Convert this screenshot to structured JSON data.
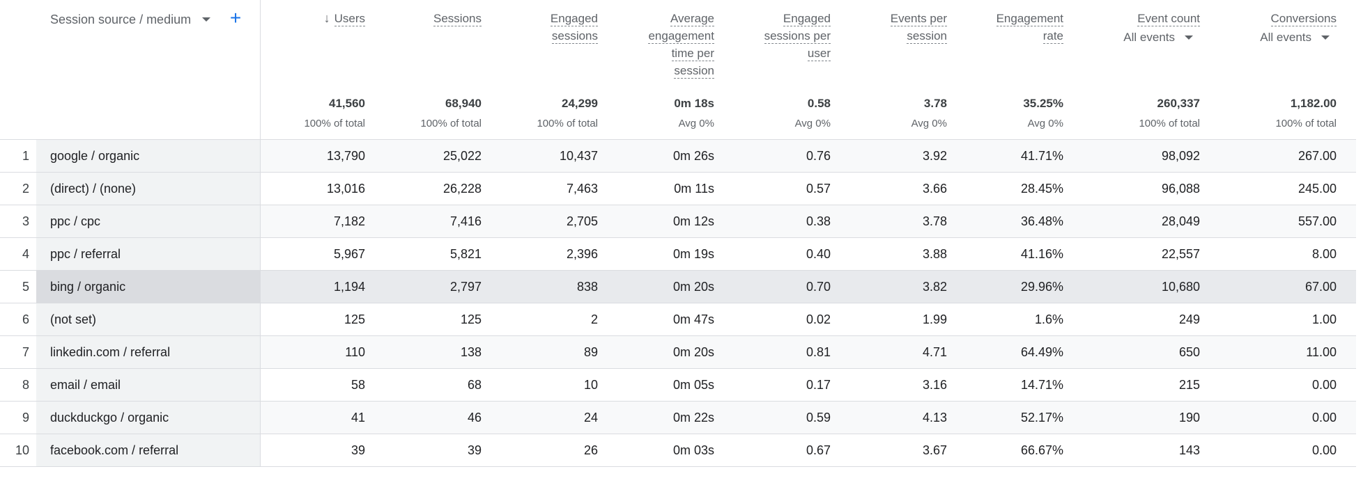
{
  "dimension": {
    "label": "Session source / medium",
    "add_symbol": "+"
  },
  "columns": [
    {
      "key": "users",
      "name_lines": [
        "Users"
      ],
      "sorted": true,
      "total": "41,560",
      "total_sub": "100% of total"
    },
    {
      "key": "sessions",
      "name_lines": [
        "Sessions"
      ],
      "total": "68,940",
      "total_sub": "100% of total"
    },
    {
      "key": "engaged_sessions",
      "name_lines": [
        "Engaged",
        "sessions"
      ],
      "total": "24,299",
      "total_sub": "100% of total"
    },
    {
      "key": "avg_engagement_time",
      "name_lines": [
        "Average",
        "engagement",
        "time per",
        "session"
      ],
      "total": "0m 18s",
      "total_sub": "Avg 0%"
    },
    {
      "key": "engaged_sessions_per_user",
      "name_lines": [
        "Engaged",
        "sessions per",
        "user"
      ],
      "total": "0.58",
      "total_sub": "Avg 0%"
    },
    {
      "key": "events_per_session",
      "name_lines": [
        "Events per",
        "session"
      ],
      "total": "3.78",
      "total_sub": "Avg 0%"
    },
    {
      "key": "engagement_rate",
      "name_lines": [
        "Engagement",
        "rate"
      ],
      "total": "35.25%",
      "total_sub": "Avg 0%"
    },
    {
      "key": "event_count",
      "name_lines": [
        "Event count"
      ],
      "filter": "All events",
      "total": "260,337",
      "total_sub": "100% of total"
    },
    {
      "key": "conversions",
      "name_lines": [
        "Conversions"
      ],
      "filter": "All events",
      "total": "1,182.00",
      "total_sub": "100% of total"
    }
  ],
  "rows": [
    {
      "index": "1",
      "source": "google / organic",
      "values": [
        "13,790",
        "25,022",
        "10,437",
        "0m 26s",
        "0.76",
        "3.92",
        "41.71%",
        "98,092",
        "267.00"
      ]
    },
    {
      "index": "2",
      "source": "(direct) / (none)",
      "values": [
        "13,016",
        "26,228",
        "7,463",
        "0m 11s",
        "0.57",
        "3.66",
        "28.45%",
        "96,088",
        "245.00"
      ]
    },
    {
      "index": "3",
      "source": "ppc / cpc",
      "values": [
        "7,182",
        "7,416",
        "2,705",
        "0m 12s",
        "0.38",
        "3.78",
        "36.48%",
        "28,049",
        "557.00"
      ]
    },
    {
      "index": "4",
      "source": "ppc / referral",
      "values": [
        "5,967",
        "5,821",
        "2,396",
        "0m 19s",
        "0.40",
        "3.88",
        "41.16%",
        "22,557",
        "8.00"
      ]
    },
    {
      "index": "5",
      "source": "bing / organic",
      "values": [
        "1,194",
        "2,797",
        "838",
        "0m 20s",
        "0.70",
        "3.82",
        "29.96%",
        "10,680",
        "67.00"
      ],
      "highlighted": true
    },
    {
      "index": "6",
      "source": "(not set)",
      "values": [
        "125",
        "125",
        "2",
        "0m 47s",
        "0.02",
        "1.99",
        "1.6%",
        "249",
        "1.00"
      ]
    },
    {
      "index": "7",
      "source": "linkedin.com / referral",
      "values": [
        "110",
        "138",
        "89",
        "0m 20s",
        "0.81",
        "4.71",
        "64.49%",
        "650",
        "11.00"
      ]
    },
    {
      "index": "8",
      "source": "email / email",
      "values": [
        "58",
        "68",
        "10",
        "0m 05s",
        "0.17",
        "3.16",
        "14.71%",
        "215",
        "0.00"
      ]
    },
    {
      "index": "9",
      "source": "duckduckgo / organic",
      "values": [
        "41",
        "46",
        "24",
        "0m 22s",
        "0.59",
        "4.13",
        "52.17%",
        "190",
        "0.00"
      ]
    },
    {
      "index": "10",
      "source": "facebook.com / referral",
      "values": [
        "39",
        "39",
        "26",
        "0m 03s",
        "0.67",
        "3.67",
        "66.67%",
        "143",
        "0.00"
      ]
    }
  ],
  "colors": {
    "accent": "#1a73e8",
    "row_highlight": "#e8eaed",
    "divider": "#dadce0"
  }
}
